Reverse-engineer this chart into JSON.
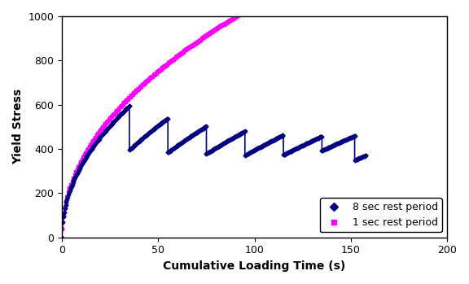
{
  "title": "",
  "xlabel": "Cumulative Loading Time (s)",
  "ylabel": "Yield Stress",
  "xlim": [
    0,
    200
  ],
  "ylim": [
    0,
    1000
  ],
  "xticks": [
    0,
    50,
    100,
    150,
    200
  ],
  "yticks": [
    0,
    200,
    400,
    600,
    800,
    1000
  ],
  "color_1sec": "#FF00FF",
  "color_8sec": "#000080",
  "marker_1sec": "s",
  "marker_8sec": "D",
  "label_1sec": "1 sec rest period",
  "label_8sec": "8 sec rest period",
  "background_color": "#FFFFFF",
  "legend_loc": "lower right",
  "figsize": [
    5.76,
    3.49
  ],
  "dpi": 100,
  "growth_exp": 0.48,
  "growth_scale_1sec": 115.0,
  "growth_scale_8sec": 108.0,
  "segments_8sec": [
    [
      0,
      35
    ],
    [
      35,
      55
    ],
    [
      55,
      75
    ],
    [
      75,
      95
    ],
    [
      95,
      115
    ],
    [
      115,
      135
    ],
    [
      135,
      152
    ],
    [
      152,
      158
    ]
  ],
  "drops_8sec": [
    200,
    155,
    125,
    110,
    90,
    65,
    110,
    0
  ]
}
